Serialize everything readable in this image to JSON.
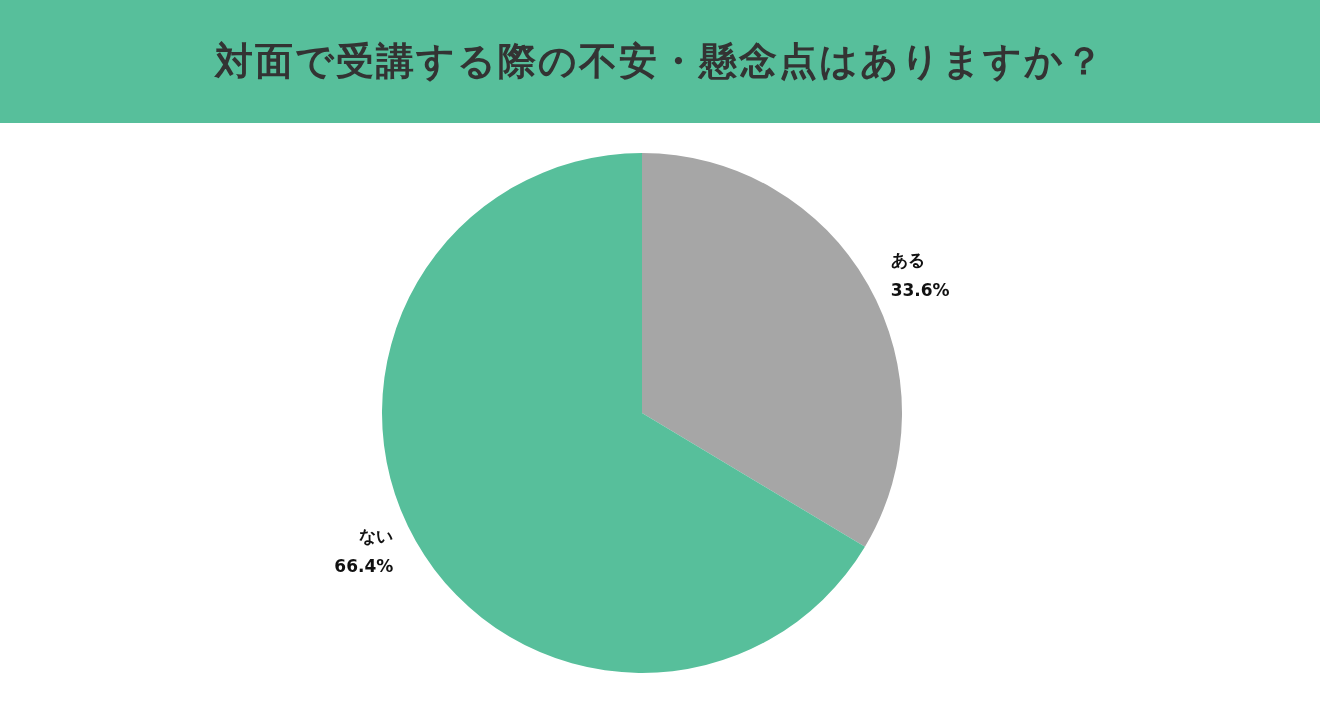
{
  "chart_data": {
    "type": "pie",
    "title": "対面で受講する際の不安・懸念点はありますか？",
    "categories": [
      "ある",
      "ない"
    ],
    "values": [
      33.6,
      66.4
    ],
    "colors": [
      "#a6a6a6",
      "#57bf9b"
    ],
    "value_labels": [
      "33.6%",
      "66.4%"
    ],
    "legend": false
  }
}
